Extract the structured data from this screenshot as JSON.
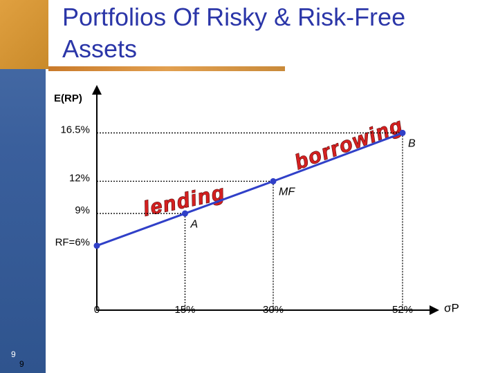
{
  "title": "Portfolios Of Risky & Risk-Free Assets",
  "page_numbers": [
    "9",
    "9"
  ],
  "chart_data": {
    "type": "line",
    "y_label": "E(RP)",
    "x_label": "σP",
    "x": [
      0,
      15,
      30,
      52
    ],
    "series": [
      {
        "color": "#3040c8",
        "values": [
          6,
          9,
          12,
          16.5
        ]
      }
    ],
    "point_labels": [
      null,
      "A",
      "MF",
      "B"
    ],
    "annotations": [
      "lending",
      "borrowing"
    ],
    "xlim": [
      0,
      60
    ],
    "ylim": [
      0,
      20
    ],
    "xticks": [
      0,
      {
        "value": 15,
        "label": "15%"
      },
      {
        "value": 30,
        "label": "30%"
      },
      {
        "value": 52,
        "label": "52%"
      }
    ],
    "yticks": [
      {
        "value": 6,
        "label": "RF=6%"
      },
      {
        "value": 9,
        "label": "9%"
      },
      {
        "value": 12,
        "label": "12%"
      },
      {
        "value": 16.5,
        "label": "16.5%"
      }
    ]
  }
}
